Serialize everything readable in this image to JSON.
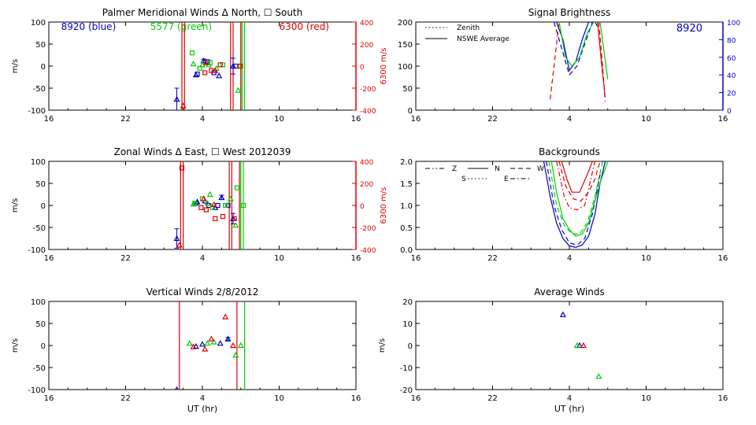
{
  "chart_data": [
    {
      "id": "meridional",
      "type": "scatter",
      "title": "Palmer Meridional Winds Δ North, ☐ South",
      "xlabel": "",
      "ylabel": "m/s",
      "y2label": "6300 m/s",
      "xticks": [
        "16",
        "22",
        "4",
        "10",
        "16"
      ],
      "xlim": [
        16,
        40
      ],
      "ylim": [
        -100,
        100
      ],
      "yticks": [
        "100",
        "50",
        "0",
        "-50",
        "-100"
      ],
      "y2lim": [
        -400,
        400
      ],
      "y2ticks": [
        "400",
        "200",
        "0",
        "-200",
        "-400"
      ],
      "legend": [
        "8920 (blue)",
        "5577 (green)",
        "6300 (red)"
      ],
      "series": [
        {
          "name": "8920 North",
          "color": "#0000cc",
          "marker": "triangle",
          "x": [
            26.0,
            27.5,
            28.1,
            29.3,
            30.4
          ],
          "y": [
            -75,
            -20,
            12,
            -22,
            0
          ],
          "err": [
            25,
            0,
            4,
            0,
            18
          ]
        },
        {
          "name": "8920 South",
          "color": "#0000cc",
          "marker": "square",
          "x": [
            27.6,
            28.4,
            28.9,
            30.6
          ],
          "y": [
            -18,
            10,
            -15,
            0
          ],
          "err": [
            0,
            0,
            0,
            0
          ]
        },
        {
          "name": "5577 North",
          "color": "#00cc00",
          "marker": "triangle",
          "x": [
            27.3,
            28.0,
            28.5,
            29.1,
            30.8
          ],
          "y": [
            5,
            3,
            3,
            -5,
            -55
          ],
          "err": [
            0,
            0,
            0,
            0,
            0
          ]
        },
        {
          "name": "5577 South",
          "color": "#00cc00",
          "marker": "square",
          "x": [
            27.2,
            27.8,
            28.6,
            29.6,
            31.0
          ],
          "y": [
            30,
            -5,
            8,
            3,
            0
          ],
          "err": [
            0,
            0,
            0,
            0,
            0
          ]
        },
        {
          "name": "6300 North",
          "color": "#dd0000",
          "marker": "triangle",
          "x": [
            26.5,
            28.3,
            29.0
          ],
          "y": [
            -90,
            8,
            -10
          ],
          "err": [
            0,
            0,
            0
          ]
        },
        {
          "name": "6300 South",
          "color": "#dd0000",
          "marker": "square",
          "x": [
            28.2,
            28.7,
            29.4,
            30.9
          ],
          "y": [
            -15,
            -10,
            3,
            0
          ],
          "err": [
            0,
            0,
            0,
            0
          ]
        }
      ],
      "vlines": [
        {
          "x": 26.4,
          "color": "#dd0000"
        },
        {
          "x": 26.6,
          "color": "#dd0000"
        },
        {
          "x": 30.2,
          "color": "#dd0000"
        },
        {
          "x": 30.4,
          "color": "#dd0000"
        },
        {
          "x": 31.0,
          "color": "#dd0000"
        },
        {
          "x": 31.1,
          "color": "#00cc00"
        },
        {
          "x": 31.3,
          "color": "#00cc00"
        }
      ]
    },
    {
      "id": "zonal",
      "type": "scatter",
      "title": "Zonal Winds Δ East, ☐ West 2012039",
      "xlabel": "",
      "ylabel": "m/s",
      "y2label": "6300 m/s",
      "xticks": [
        "16",
        "22",
        "4",
        "10",
        "16"
      ],
      "xlim": [
        16,
        40
      ],
      "ylim": [
        -100,
        100
      ],
      "yticks": [
        "100",
        "50",
        "0",
        "-50",
        "-100"
      ],
      "y2lim": [
        -400,
        400
      ],
      "y2ticks": [
        "400",
        "200",
        "0",
        "-200",
        "-400"
      ],
      "series": [
        {
          "name": "8920 East",
          "color": "#0000cc",
          "marker": "triangle",
          "x": [
            26.0,
            27.6,
            28.2,
            29.0,
            29.5,
            30.4
          ],
          "y": [
            -75,
            8,
            10,
            -5,
            18,
            -30
          ],
          "err": [
            22,
            0,
            0,
            0,
            5,
            12
          ]
        },
        {
          "name": "8920 West",
          "color": "#0000cc",
          "marker": "square",
          "x": [
            27.5,
            28.5,
            29.2,
            30.0
          ],
          "y": [
            5,
            0,
            0,
            0
          ],
          "err": [
            0,
            0,
            0,
            0
          ]
        },
        {
          "name": "5577 East",
          "color": "#00cc00",
          "marker": "triangle",
          "x": [
            27.3,
            28.4,
            28.6,
            30.2,
            30.6
          ],
          "y": [
            3,
            5,
            25,
            15,
            -45
          ],
          "err": [
            0,
            0,
            0,
            0,
            0
          ]
        },
        {
          "name": "5577 West",
          "color": "#00cc00",
          "marker": "square",
          "x": [
            27.4,
            28.0,
            28.8,
            29.8,
            30.7,
            31.2
          ],
          "y": [
            5,
            15,
            -5,
            0,
            40,
            0
          ],
          "err": [
            0,
            0,
            0,
            0,
            0,
            0
          ]
        },
        {
          "name": "6300 East",
          "color": "#dd0000",
          "marker": "triangle",
          "x": [
            26.2,
            28.1,
            28.9
          ],
          "y": [
            -90,
            15,
            2
          ],
          "err": [
            0,
            0,
            0
          ]
        },
        {
          "name": "6300 West",
          "color": "#dd0000",
          "marker": "square",
          "x": [
            26.4,
            27.9,
            28.3,
            29.0,
            29.6,
            30.5
          ],
          "y": [
            85,
            -5,
            -10,
            -30,
            -25,
            -30
          ],
          "err": [
            0,
            0,
            0,
            0,
            0,
            0
          ]
        }
      ],
      "vlines": [
        {
          "x": 26.3,
          "color": "#dd0000"
        },
        {
          "x": 26.5,
          "color": "#dd0000"
        },
        {
          "x": 30.1,
          "color": "#dd0000"
        },
        {
          "x": 30.3,
          "color": "#dd0000"
        },
        {
          "x": 30.9,
          "color": "#dd0000"
        },
        {
          "x": 31.0,
          "color": "#00cc00"
        },
        {
          "x": 31.2,
          "color": "#00cc00"
        }
      ]
    },
    {
      "id": "vertical",
      "type": "scatter",
      "title": "Vertical Winds 2/8/2012",
      "xlabel": "UT (hr)",
      "ylabel": "m/s",
      "xticks": [
        "16",
        "22",
        "4",
        "10",
        "16"
      ],
      "xlim": [
        16,
        40
      ],
      "ylim": [
        -100,
        100
      ],
      "yticks": [
        "100",
        "50",
        "0",
        "-50",
        "-100"
      ],
      "series": [
        {
          "name": "8920",
          "color": "#0000cc",
          "marker": "triangle",
          "x": [
            26.0,
            27.5,
            28.0,
            29.4,
            30.0
          ],
          "y": [
            -100,
            -2,
            3,
            5,
            15
          ],
          "err": [
            0,
            0,
            0,
            0,
            3
          ]
        },
        {
          "name": "5577",
          "color": "#00cc00",
          "marker": "triangle",
          "x": [
            27.0,
            28.4,
            28.9,
            30.6,
            31.0
          ],
          "y": [
            5,
            5,
            8,
            -22,
            0
          ],
          "err": [
            0,
            0,
            0,
            0,
            0
          ]
        },
        {
          "name": "6300",
          "color": "#dd0000",
          "marker": "triangle",
          "x": [
            27.3,
            28.2,
            28.7,
            29.8,
            30.4
          ],
          "y": [
            -3,
            -8,
            15,
            65,
            0
          ],
          "err": [
            0,
            0,
            0,
            0,
            0
          ]
        }
      ],
      "vlines": [
        {
          "x": 26.2,
          "color": "#dd0000"
        },
        {
          "x": 30.7,
          "color": "#dd0000"
        },
        {
          "x": 31.3,
          "color": "#00cc00"
        }
      ]
    },
    {
      "id": "brightness",
      "type": "line",
      "title": "Signal Brightness",
      "xlabel": "",
      "ylabel": "",
      "y2label": "",
      "label_top_right": "8920",
      "xticks": [
        "16",
        "22",
        "4",
        "10",
        "16"
      ],
      "xlim": [
        16,
        40
      ],
      "ylim": [
        0,
        200
      ],
      "yticks": [
        "200",
        "150",
        "100",
        "50",
        "0"
      ],
      "y2lim": [
        0,
        100
      ],
      "y2ticks": [
        "100",
        "80",
        "60",
        "40",
        "20",
        "0"
      ],
      "legend": [
        {
          "style": "dotted",
          "label": "Zenith"
        },
        {
          "style": "solid",
          "label": "NSWE Average"
        }
      ],
      "series": [
        {
          "name": "8920 avg",
          "color": "#0000cc",
          "style": "solid",
          "x": [
            27.0,
            27.5,
            28.0,
            28.5,
            29.0,
            29.5,
            30.0,
            30.2
          ],
          "y": [
            200,
            160,
            90,
            110,
            160,
            200,
            200,
            190
          ]
        },
        {
          "name": "8920 zenith",
          "color": "#0000cc",
          "style": "dashed",
          "x": [
            26.8,
            27.5,
            28.0,
            28.6,
            29.2,
            29.8
          ],
          "y": [
            200,
            130,
            80,
            100,
            150,
            200
          ]
        },
        {
          "name": "5577 avg",
          "color": "#00cc00",
          "style": "solid",
          "x": [
            27.2,
            27.7,
            28.2,
            28.8,
            29.4,
            29.9,
            30.4,
            31.0
          ],
          "y": [
            200,
            120,
            100,
            120,
            175,
            200,
            200,
            70
          ]
        },
        {
          "name": "6300 avg",
          "color": "#dd0000",
          "style": "solid",
          "x": [
            30.2,
            30.5,
            30.8
          ],
          "y": [
            200,
            110,
            30
          ]
        },
        {
          "name": "6300 zenith",
          "color": "#dd0000",
          "style": "dashed",
          "x": [
            26.5,
            26.8,
            27.2
          ],
          "y": [
            25,
            100,
            200
          ]
        },
        {
          "name": "6300 zenith2",
          "color": "#dd0000",
          "style": "dashed",
          "x": [
            30.3,
            30.6,
            30.8
          ],
          "y": [
            200,
            100,
            20
          ]
        }
      ]
    },
    {
      "id": "backgrounds",
      "type": "line",
      "title": "Backgrounds",
      "xlabel": "",
      "ylabel": "",
      "xticks": [
        "16",
        "22",
        "4",
        "10",
        "16"
      ],
      "xlim": [
        16,
        40
      ],
      "ylim": [
        0,
        2.0
      ],
      "yticks": [
        "2.0",
        "1.5",
        "1.0",
        "0.5",
        "0.0"
      ],
      "legend": [
        {
          "style": "dashdotdot",
          "label": "Z"
        },
        {
          "style": "solid",
          "label": "N"
        },
        {
          "style": "dashed",
          "label": "W"
        },
        {
          "style": "dotted",
          "label": "S"
        },
        {
          "style": "dashdot",
          "label": "E"
        }
      ],
      "series": [
        {
          "name": "blue N",
          "color": "#0000cc",
          "style": "solid",
          "x": [
            26.0,
            26.5,
            27.0,
            27.5,
            28.0,
            28.5,
            29.0,
            29.5,
            30.0,
            30.4,
            30.8
          ],
          "y": [
            2.0,
            1.2,
            0.6,
            0.25,
            0.08,
            0.05,
            0.1,
            0.3,
            0.8,
            1.5,
            2.0
          ]
        },
        {
          "name": "blue E",
          "color": "#0000cc",
          "style": "dashed",
          "x": [
            26.2,
            26.8,
            27.4,
            28.0,
            28.6,
            29.2,
            29.8,
            30.4
          ],
          "y": [
            2.0,
            1.0,
            0.45,
            0.15,
            0.1,
            0.25,
            0.8,
            1.7
          ]
        },
        {
          "name": "green N",
          "color": "#00cc00",
          "style": "solid",
          "x": [
            26.6,
            27.0,
            27.5,
            28.0,
            28.5,
            29.0,
            29.5,
            30.0,
            30.5,
            31.0
          ],
          "y": [
            2.0,
            1.3,
            0.7,
            0.45,
            0.3,
            0.35,
            0.6,
            1.1,
            1.6,
            2.0
          ]
        },
        {
          "name": "green W",
          "color": "#00cc00",
          "style": "dashed",
          "x": [
            26.4,
            27.0,
            27.6,
            28.2,
            28.8,
            29.4,
            30.0,
            30.6
          ],
          "y": [
            2.0,
            1.0,
            0.55,
            0.35,
            0.35,
            0.6,
            1.2,
            2.0
          ]
        },
        {
          "name": "red Z",
          "color": "#dd0000",
          "style": "dashdot",
          "x": [
            27.0,
            27.3,
            27.6,
            28.0,
            28.6,
            29.2,
            29.6,
            30.0
          ],
          "y": [
            2.0,
            1.6,
            1.2,
            0.95,
            0.9,
            1.0,
            1.5,
            2.0
          ]
        },
        {
          "name": "red N",
          "color": "#dd0000",
          "style": "solid",
          "x": [
            27.4,
            27.8,
            28.2,
            28.8,
            29.4,
            29.8
          ],
          "y": [
            2.0,
            1.6,
            1.3,
            1.3,
            1.7,
            2.0
          ]
        },
        {
          "name": "red W",
          "color": "#dd0000",
          "style": "dashed",
          "x": [
            27.2,
            27.7,
            28.3,
            28.9,
            29.5,
            30.0,
            30.4
          ],
          "y": [
            2.0,
            1.45,
            1.15,
            1.1,
            1.3,
            1.6,
            2.0
          ]
        }
      ]
    },
    {
      "id": "average",
      "type": "scatter",
      "title": "Average Winds",
      "xlabel": "UT (hr)",
      "ylabel": "m/s",
      "xticks": [
        "16",
        "22",
        "4",
        "10",
        "16"
      ],
      "xlim": [
        16,
        40
      ],
      "ylim": [
        -20,
        20
      ],
      "yticks": [
        "20",
        "10",
        "0",
        "-10",
        "-20"
      ],
      "series": [
        {
          "name": "8920",
          "color": "#0000cc",
          "marker": "triangle",
          "x": [
            27.5,
            28.8
          ],
          "y": [
            14,
            0
          ],
          "err": [
            0,
            0
          ]
        },
        {
          "name": "5577",
          "color": "#00cc00",
          "marker": "triangle",
          "x": [
            28.6,
            30.3
          ],
          "y": [
            0,
            -14
          ],
          "err": [
            0,
            0
          ]
        },
        {
          "name": "6300",
          "color": "#dd0000",
          "marker": "triangle",
          "x": [
            29.1
          ],
          "y": [
            0
          ],
          "err": [
            0
          ]
        }
      ]
    }
  ]
}
